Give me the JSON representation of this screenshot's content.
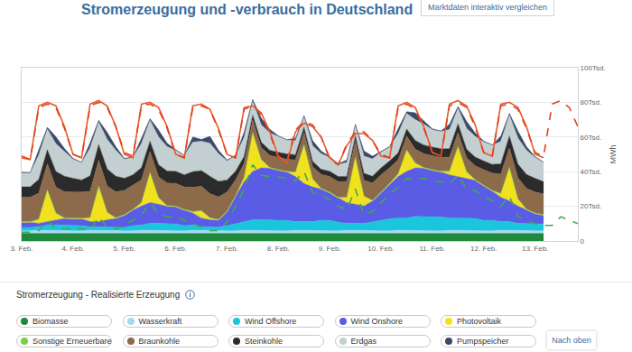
{
  "header": {
    "title": "Stromerzeugung und -verbrauch in Deutschland",
    "button": "Marktdaten interaktiv vergleichen"
  },
  "chart_data": {
    "type": "area",
    "stacked": true,
    "grid": true,
    "y_label": "MWh",
    "ylim": [
      0,
      100000
    ],
    "yticks": [
      0,
      {
        "value": 20000,
        "label": "20Tsd."
      },
      {
        "value": 40000,
        "label": "40Tsd."
      },
      {
        "value": 60000,
        "label": "60Tsd."
      },
      {
        "value": 80000,
        "label": "80Tsd."
      },
      {
        "value": 100000,
        "label": "100Tsd."
      }
    ],
    "categories": [
      "3. Feb.",
      null,
      null,
      null,
      null,
      null,
      "4. Feb.",
      null,
      null,
      null,
      null,
      null,
      "5. Feb.",
      null,
      null,
      null,
      null,
      null,
      "6. Feb.",
      null,
      null,
      null,
      null,
      null,
      "7. Feb.",
      null,
      null,
      null,
      null,
      null,
      "8. Feb.",
      null,
      null,
      null,
      null,
      null,
      "9. Feb.",
      null,
      null,
      null,
      null,
      null,
      "10. Feb.",
      null,
      null,
      null,
      null,
      null,
      "11. Feb.",
      null,
      null,
      null,
      null,
      null,
      "12. Feb.",
      null,
      null,
      null,
      null,
      null,
      "13. Feb.",
      null,
      null,
      null,
      null,
      null
    ],
    "series": [
      {
        "name": "Biomasse",
        "color": "#1f8a3b",
        "values": [
          4400,
          4400,
          4600,
          4600,
          4600,
          4500,
          4400,
          4400,
          4600,
          4600,
          4600,
          4500,
          4400,
          4400,
          4600,
          4600,
          4600,
          4500,
          4400,
          4400,
          4600,
          4600,
          4600,
          4500,
          4400,
          4400,
          4600,
          4600,
          4600,
          4500,
          4400,
          4400,
          4600,
          4600,
          4600,
          4500,
          4400,
          4400,
          4600,
          4600,
          4600,
          4500,
          4400,
          4400,
          4600,
          4600,
          4600,
          4500,
          4400,
          4400,
          4600,
          4600,
          4600,
          4500,
          4400,
          4400,
          4600,
          4600,
          4600,
          4500,
          4400,
          4400,
          null,
          null,
          null,
          null
        ]
      },
      {
        "name": "Wasserkraft",
        "color": "#a8d8f0",
        "values": [
          1400,
          1400,
          1600,
          1600,
          1600,
          1500,
          1400,
          1400,
          1600,
          1600,
          1600,
          1500,
          1400,
          1400,
          1600,
          1600,
          1600,
          1500,
          1400,
          1400,
          1600,
          1600,
          1600,
          1500,
          1400,
          1400,
          1600,
          1600,
          1600,
          1500,
          1400,
          1400,
          1600,
          1600,
          1600,
          1500,
          1400,
          1400,
          1600,
          1600,
          1600,
          1500,
          1400,
          1400,
          1600,
          1600,
          1600,
          1500,
          1400,
          1400,
          1600,
          1600,
          1600,
          1500,
          1400,
          1400,
          1600,
          1600,
          1600,
          1500,
          1400,
          1400,
          null,
          null,
          null,
          null
        ]
      },
      {
        "name": "Wind Offshore",
        "color": "#19c6dc",
        "values": [
          2000,
          2000,
          2000,
          3000,
          3000,
          3000,
          3000,
          3000,
          2000,
          2000,
          2000,
          2000,
          2000,
          3000,
          3000,
          4000,
          4000,
          4000,
          4000,
          3000,
          3000,
          2000,
          2000,
          2000,
          3000,
          4000,
          5000,
          6000,
          6000,
          6000,
          6000,
          6000,
          5000,
          5000,
          5000,
          6000,
          6000,
          5000,
          4000,
          4000,
          4000,
          5000,
          6000,
          7000,
          7000,
          7000,
          8000,
          8000,
          8000,
          8000,
          7000,
          7000,
          7000,
          7000,
          6000,
          6000,
          5000,
          5000,
          4000,
          4000,
          4000,
          4000,
          null,
          null,
          null,
          null
        ]
      },
      {
        "name": "Wind Onshore",
        "color": "#5b5ce6",
        "values": [
          3000,
          3000,
          2000,
          2000,
          3000,
          4000,
          4000,
          4000,
          3000,
          3000,
          4000,
          5000,
          7000,
          9000,
          11000,
          12000,
          11000,
          10000,
          10000,
          9000,
          7000,
          5000,
          4000,
          4000,
          8000,
          16000,
          23000,
          28000,
          30000,
          30000,
          29000,
          28000,
          26000,
          22000,
          20000,
          18000,
          16000,
          14000,
          12000,
          11000,
          10000,
          12000,
          16000,
          20000,
          24000,
          27000,
          28000,
          28000,
          27000,
          26000,
          25000,
          24000,
          23000,
          22000,
          20000,
          17000,
          14000,
          12000,
          10000,
          8000,
          6000,
          5000,
          null,
          null,
          null,
          null
        ]
      },
      {
        "name": "Photovoltaik",
        "color": "#f2e21d",
        "values": [
          0,
          0,
          2000,
          18000,
          3500,
          0,
          0,
          0,
          2000,
          20000,
          4000,
          0,
          0,
          0,
          1700,
          17000,
          3400,
          0,
          0,
          0,
          400,
          4000,
          800,
          0,
          0,
          0,
          2200,
          22000,
          4400,
          0,
          0,
          0,
          2200,
          22000,
          4400,
          0,
          0,
          0,
          2700,
          27000,
          5400,
          0,
          0,
          0,
          1200,
          12000,
          2400,
          0,
          0,
          0,
          1700,
          17000,
          3400,
          0,
          0,
          0,
          1900,
          19000,
          3800,
          0,
          0,
          0,
          null,
          null,
          null,
          null
        ]
      },
      {
        "name": "Sonstige Erneuerbare",
        "color": "#7acc4f",
        "values": [
          400,
          400,
          400,
          400,
          400,
          400,
          400,
          400,
          400,
          400,
          400,
          400,
          400,
          400,
          400,
          400,
          400,
          400,
          400,
          400,
          400,
          400,
          400,
          400,
          400,
          400,
          400,
          400,
          400,
          400,
          400,
          400,
          400,
          400,
          400,
          400,
          400,
          400,
          400,
          400,
          400,
          400,
          400,
          400,
          400,
          400,
          400,
          400,
          400,
          400,
          400,
          400,
          400,
          400,
          400,
          400,
          400,
          400,
          400,
          400,
          400,
          400,
          null,
          null,
          null,
          null
        ]
      },
      {
        "name": "Braunkohle",
        "color": "#8c6a4a",
        "values": [
          14000,
          14000,
          15000,
          15000,
          15000,
          15000,
          15000,
          15000,
          15000,
          15000,
          15000,
          15000,
          14000,
          14000,
          13000,
          12000,
          12000,
          13000,
          13000,
          13000,
          14000,
          14000,
          14000,
          13000,
          11000,
          9000,
          8000,
          7000,
          7000,
          7000,
          7000,
          7000,
          7000,
          7000,
          7000,
          8000,
          9000,
          9000,
          9000,
          9000,
          9000,
          10000,
          10000,
          9000,
          8000,
          8000,
          8000,
          8000,
          8000,
          8000,
          8000,
          8000,
          8000,
          8000,
          9000,
          10000,
          11000,
          11000,
          12000,
          12000,
          12000,
          12000,
          null,
          null,
          null,
          null
        ]
      },
      {
        "name": "Steinkohle",
        "color": "#2b2b2b",
        "values": [
          6000,
          6000,
          8000,
          8000,
          9000,
          9000,
          8000,
          7000,
          9000,
          9000,
          10000,
          9000,
          7000,
          6000,
          7000,
          6000,
          7000,
          7000,
          7000,
          7000,
          9000,
          9000,
          10000,
          9000,
          7000,
          5000,
          4000,
          3000,
          3000,
          3000,
          3000,
          3000,
          3000,
          3000,
          3000,
          3000,
          3000,
          3000,
          3000,
          3000,
          4000,
          4000,
          4000,
          4000,
          4000,
          4000,
          5000,
          5000,
          5000,
          5000,
          5000,
          5000,
          5000,
          5000,
          5000,
          5000,
          6000,
          7000,
          8000,
          8000,
          8000,
          7000,
          null,
          null,
          null,
          null
        ]
      },
      {
        "name": "Erdgas",
        "color": "#c4cfd1",
        "values": [
          8000,
          8000,
          14000,
          12000,
          16000,
          14000,
          11000,
          10000,
          16000,
          13000,
          17000,
          15000,
          11000,
          10000,
          14000,
          12000,
          16000,
          14000,
          12000,
          11000,
          17000,
          17000,
          19000,
          16000,
          11000,
          9000,
          11000,
          8000,
          10000,
          10000,
          9000,
          8000,
          8000,
          6000,
          9000,
          9000,
          8000,
          7000,
          8000,
          6000,
          10000,
          10000,
          9000,
          8000,
          11000,
          9000,
          12000,
          12000,
          10000,
          10000,
          11000,
          9000,
          12000,
          12000,
          11000,
          11000,
          13000,
          12000,
          15000,
          14000,
          12000,
          11000,
          null,
          null,
          null,
          null
        ]
      },
      {
        "name": "Pumpspeicher",
        "color": "#3c4a68",
        "values": [
          500,
          300,
          3000,
          1000,
          4000,
          2000,
          500,
          300,
          3000,
          1000,
          4000,
          2000,
          500,
          300,
          3000,
          1000,
          4000,
          2000,
          500,
          300,
          3000,
          1000,
          4000,
          2000,
          500,
          300,
          3000,
          1000,
          4000,
          2000,
          500,
          300,
          1500,
          800,
          3000,
          1500,
          500,
          300,
          1500,
          800,
          3000,
          1500,
          500,
          300,
          3000,
          1000,
          4000,
          2000,
          500,
          300,
          3000,
          1000,
          4000,
          2000,
          500,
          300,
          3000,
          1000,
          4000,
          2000,
          500,
          300,
          null,
          null,
          null,
          null
        ]
      },
      {
        "type": "line",
        "line_style": "solid",
        "color": "#e9582c",
        "values": [
          48000,
          47000,
          78000,
          80000,
          78000,
          66000,
          50000,
          48000,
          79000,
          81000,
          78000,
          66000,
          50000,
          48000,
          79000,
          80000,
          77000,
          66000,
          50000,
          48000,
          78000,
          79000,
          76000,
          65000,
          50000,
          48000,
          77000,
          78000,
          74000,
          63000,
          49000,
          45000,
          63000,
          68000,
          66000,
          60000,
          48000,
          44000,
          55000,
          62000,
          62000,
          58000,
          49000,
          48000,
          78000,
          80000,
          77000,
          66000,
          51000,
          49000,
          79000,
          81000,
          78000,
          67000,
          51000,
          49000,
          79000,
          80000,
          77000,
          66000,
          50000,
          48000,
          null,
          null,
          null,
          null
        ]
      },
      {
        "type": "line",
        "line_style": "dashed",
        "color": "#e0421e",
        "values": [
          49000,
          47000,
          77000,
          79000,
          77000,
          65000,
          50000,
          48000,
          78000,
          80000,
          77000,
          66000,
          51000,
          49000,
          78000,
          79000,
          76000,
          65000,
          50000,
          48000,
          77000,
          78000,
          76000,
          64000,
          50000,
          48000,
          76000,
          78000,
          73000,
          62000,
          48000,
          46000,
          64000,
          69000,
          67000,
          60000,
          47000,
          44000,
          56000,
          63000,
          63000,
          58000,
          50000,
          48000,
          77000,
          79000,
          76000,
          65000,
          51000,
          49000,
          78000,
          80000,
          77000,
          66000,
          51000,
          49000,
          78000,
          79000,
          76000,
          65000,
          51000,
          49000,
          79000,
          81000,
          77000,
          66000
        ]
      },
      {
        "type": "line",
        "line_style": "dashed",
        "color": "#3dab4b",
        "values": [
          5000,
          5000,
          6000,
          12000,
          7000,
          7000,
          7000,
          7000,
          6000,
          14000,
          8000,
          7000,
          9000,
          12000,
          15000,
          22000,
          16000,
          14000,
          14000,
          12000,
          10000,
          8000,
          6000,
          6000,
          11000,
          20000,
          30000,
          44000,
          38000,
          37000,
          37000,
          36000,
          35000,
          40000,
          28000,
          26000,
          24000,
          20000,
          18000,
          30000,
          15000,
          17000,
          22000,
          27000,
          31000,
          36000,
          36000,
          36000,
          35000,
          34000,
          33000,
          38000,
          30000,
          29000,
          26000,
          23000,
          20000,
          26000,
          14000,
          12000,
          10000,
          9000,
          9000,
          14000,
          12000,
          10000
        ]
      }
    ]
  },
  "legend_heading": "Stromerzeugung - Realisierte Erzeugung",
  "footer_button": "Nach oben"
}
